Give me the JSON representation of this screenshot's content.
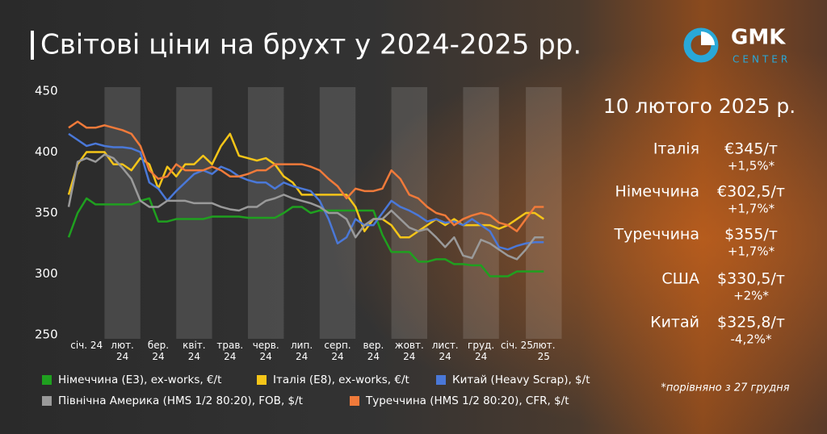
{
  "chart_data": {
    "type": "line",
    "title": "Світові ціни на брухт у 2024-2025 рр.",
    "categories": [
      null,
      null,
      "січ. 24",
      null,
      null,
      null,
      "лют. 24",
      null,
      null,
      null,
      "бер. 24",
      null,
      null,
      null,
      "квіт. 24",
      null,
      null,
      null,
      "трав. 24",
      null,
      null,
      null,
      "черв. 24",
      null,
      null,
      null,
      "лип. 24",
      null,
      null,
      null,
      "серп. 24",
      null,
      null,
      null,
      "вер. 24",
      null,
      null,
      null,
      "жовт. 24",
      null,
      null,
      null,
      "лист. 24",
      null,
      null,
      null,
      "груд. 24",
      null,
      null,
      null,
      "січ. 25",
      null,
      null,
      "лют. 25"
    ],
    "ylim": [
      250,
      450
    ],
    "yticks": [
      250,
      300,
      350,
      400,
      450
    ],
    "grid": false,
    "series": [
      {
        "name": "Німеччина (E3), ex-works, €/t",
        "color": "#1fa01f",
        "values": [
          330,
          350,
          362,
          357,
          357,
          357,
          357,
          357,
          360,
          362,
          343,
          343,
          345,
          345,
          345,
          345,
          347,
          347,
          347,
          347,
          346,
          346,
          346,
          346,
          350,
          355,
          355,
          350,
          352,
          352,
          352,
          352,
          352,
          352,
          352,
          332,
          318,
          318,
          318,
          310,
          310,
          312,
          312,
          308,
          308,
          307,
          307,
          298,
          298,
          298,
          302,
          302,
          302,
          302
        ]
      },
      {
        "name": "Італія (E8), ex-works, €/t",
        "color": "#f5c518",
        "values": [
          365,
          390,
          400,
          400,
          400,
          390,
          390,
          385,
          395,
          390,
          370,
          388,
          380,
          390,
          390,
          397,
          390,
          405,
          415,
          397,
          395,
          393,
          395,
          390,
          380,
          375,
          365,
          365,
          365,
          365,
          365,
          365,
          355,
          335,
          345,
          345,
          340,
          330,
          330,
          335,
          340,
          345,
          340,
          345,
          340,
          340,
          340,
          340,
          337,
          340,
          345,
          350,
          350,
          345
        ]
      },
      {
        "name": "Китай (Heavy Scrap), $/t",
        "color": "#4a78d8",
        "values": [
          415,
          410,
          405,
          407,
          405,
          404,
          404,
          403,
          400,
          375,
          370,
          360,
          368,
          375,
          382,
          385,
          382,
          388,
          385,
          380,
          377,
          375,
          375,
          370,
          375,
          372,
          370,
          368,
          360,
          345,
          325,
          330,
          345,
          340,
          340,
          350,
          360,
          355,
          352,
          348,
          343,
          345,
          342,
          343,
          340,
          345,
          340,
          335,
          322,
          320,
          323,
          325,
          326,
          326
        ]
      },
      {
        "name": "Північна Америка (HMS 1/2 80:20), FOB, $/t",
        "color": "#9a9a9a",
        "values": [
          355,
          392,
          395,
          392,
          398,
          395,
          387,
          378,
          360,
          355,
          355,
          360,
          360,
          360,
          358,
          358,
          358,
          355,
          353,
          352,
          355,
          355,
          360,
          362,
          365,
          362,
          360,
          358,
          355,
          350,
          350,
          345,
          330,
          340,
          345,
          345,
          352,
          345,
          338,
          335,
          337,
          330,
          322,
          330,
          315,
          313,
          328,
          325,
          320,
          315,
          312,
          320,
          330,
          330
        ]
      },
      {
        "name": "Туреччина (HMS 1/2 80:20), CFR, $/t",
        "color": "#f07a3a",
        "values": [
          420,
          425,
          420,
          420,
          422,
          420,
          418,
          415,
          405,
          385,
          378,
          380,
          390,
          385,
          385,
          385,
          388,
          385,
          380,
          380,
          382,
          385,
          385,
          390,
          390,
          390,
          390,
          388,
          385,
          378,
          372,
          362,
          370,
          368,
          368,
          370,
          385,
          378,
          365,
          362,
          355,
          350,
          348,
          340,
          345,
          348,
          350,
          348,
          342,
          340,
          335,
          345,
          355,
          355
        ]
      }
    ]
  },
  "logo": {
    "name": "GMK",
    "sub": "CENTER"
  },
  "prices": {
    "date": "10 лютого 2025 р.",
    "rows": [
      {
        "country": "Італія",
        "price": "€345/т",
        "change": "+1,5%*"
      },
      {
        "country": "Німеччина",
        "price": "€302,5/т",
        "change": "+1,7%*"
      },
      {
        "country": "Туреччина",
        "price": "$355/т",
        "change": "+1,7%*"
      },
      {
        "country": "США",
        "price": "$330,5/т",
        "change": "+2%*"
      },
      {
        "country": "Китай",
        "price": "$325,8/т",
        "change": "-4,2%*"
      }
    ],
    "note": "*порівняно з 27 грудня"
  }
}
